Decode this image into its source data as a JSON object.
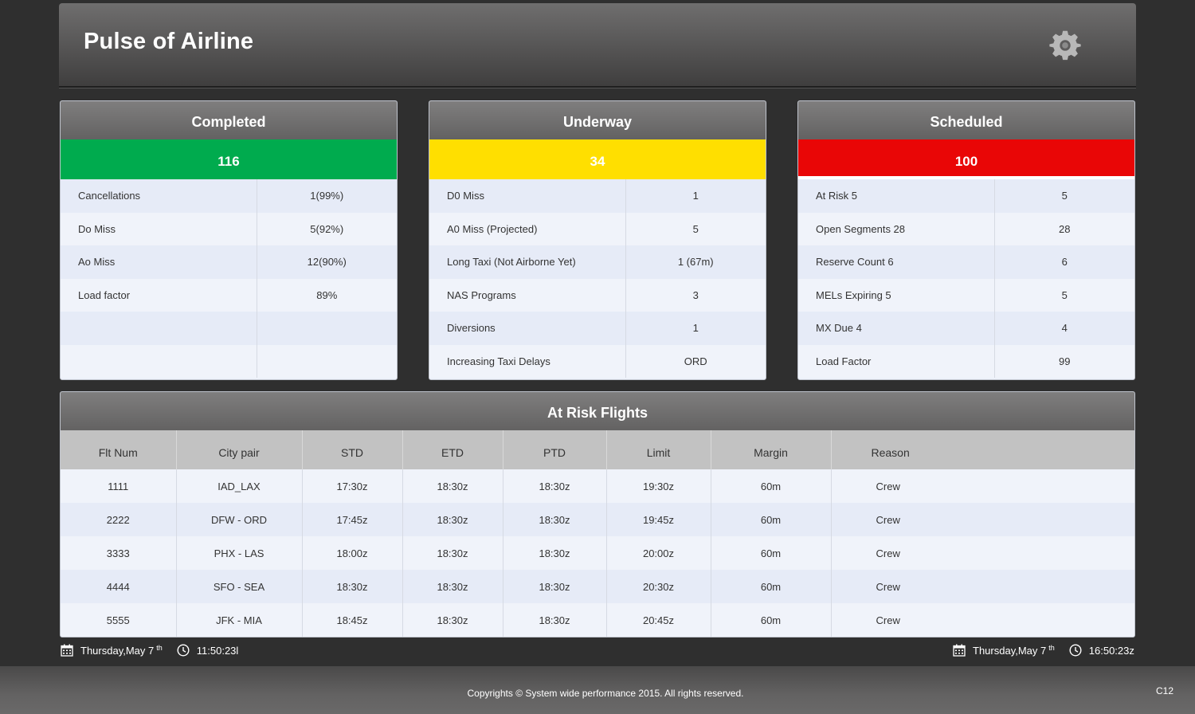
{
  "header": {
    "title": "Pulse of Airline",
    "settings_icon": "gear-icon"
  },
  "panels": {
    "completed": {
      "title": "Completed",
      "count": "116",
      "color": "#00ab4e",
      "rows": [
        {
          "label": "Cancellations",
          "value": "1(99%)"
        },
        {
          "label": "Do Miss",
          "value": "5(92%)"
        },
        {
          "label": "Ao Miss",
          "value": "12(90%)"
        },
        {
          "label": "Load factor",
          "value": "89%"
        },
        {
          "label": "",
          "value": ""
        },
        {
          "label": "",
          "value": ""
        }
      ]
    },
    "underway": {
      "title": "Underway",
      "count": "34",
      "color": "#ffdf00",
      "rows": [
        {
          "label": "D0 Miss",
          "value": "1"
        },
        {
          "label": "A0 Miss (Projected)",
          "value": "5"
        },
        {
          "label": "Long Taxi (Not Airborne Yet)",
          "value": "1 (67m)"
        },
        {
          "label": "NAS Programs",
          "value": "3"
        },
        {
          "label": "Diversions",
          "value": "1"
        },
        {
          "label": "Increasing Taxi Delays",
          "value": "ORD"
        }
      ]
    },
    "scheduled": {
      "title": "Scheduled",
      "count": "100",
      "color": "#e90606",
      "rows": [
        {
          "label": "At Risk 5",
          "value": "5"
        },
        {
          "label": "Open Segments 28",
          "value": "28"
        },
        {
          "label": "Reserve Count 6",
          "value": "6"
        },
        {
          "label": "MELs Expiring 5",
          "value": "5"
        },
        {
          "label": "MX Due 4",
          "value": "4"
        },
        {
          "label": "Load Factor",
          "value": "99"
        }
      ]
    }
  },
  "at_risk": {
    "title": "At Risk Flights",
    "columns": [
      "Flt Num",
      "City pair",
      "STD",
      "ETD",
      "PTD",
      "Limit",
      "Margin",
      "Reason"
    ],
    "rows": [
      [
        "1111",
        "IAD_LAX",
        "17:30z",
        "18:30z",
        "18:30z",
        "19:30z",
        "60m",
        "Crew"
      ],
      [
        "2222",
        "DFW - ORD",
        "17:45z",
        "18:30z",
        "18:30z",
        "19:45z",
        "60m",
        "Crew"
      ],
      [
        "3333",
        "PHX - LAS",
        "18:00z",
        "18:30z",
        "18:30z",
        "20:00z",
        "60m",
        "Crew"
      ],
      [
        "4444",
        "SFO - SEA",
        "18:30z",
        "18:30z",
        "18:30z",
        "20:30z",
        "60m",
        "Crew"
      ],
      [
        "5555",
        "JFK - MIA",
        "18:45z",
        "18:30z",
        "18:30z",
        "20:45z",
        "60m",
        "Crew"
      ]
    ]
  },
  "status": {
    "local_date": "Thursday,May 7",
    "local_date_suffix": "th",
    "local_time": "11:50:23l",
    "zulu_date": "Thursday,May 7",
    "zulu_date_suffix": "th",
    "zulu_time": "16:50:23z",
    "calendar_icon": "calendar-icon",
    "clock_icon": "clock-icon"
  },
  "footer": {
    "copyright": "Copyrights © System wide performance 2015. All rights reserved.",
    "code": "C12"
  }
}
